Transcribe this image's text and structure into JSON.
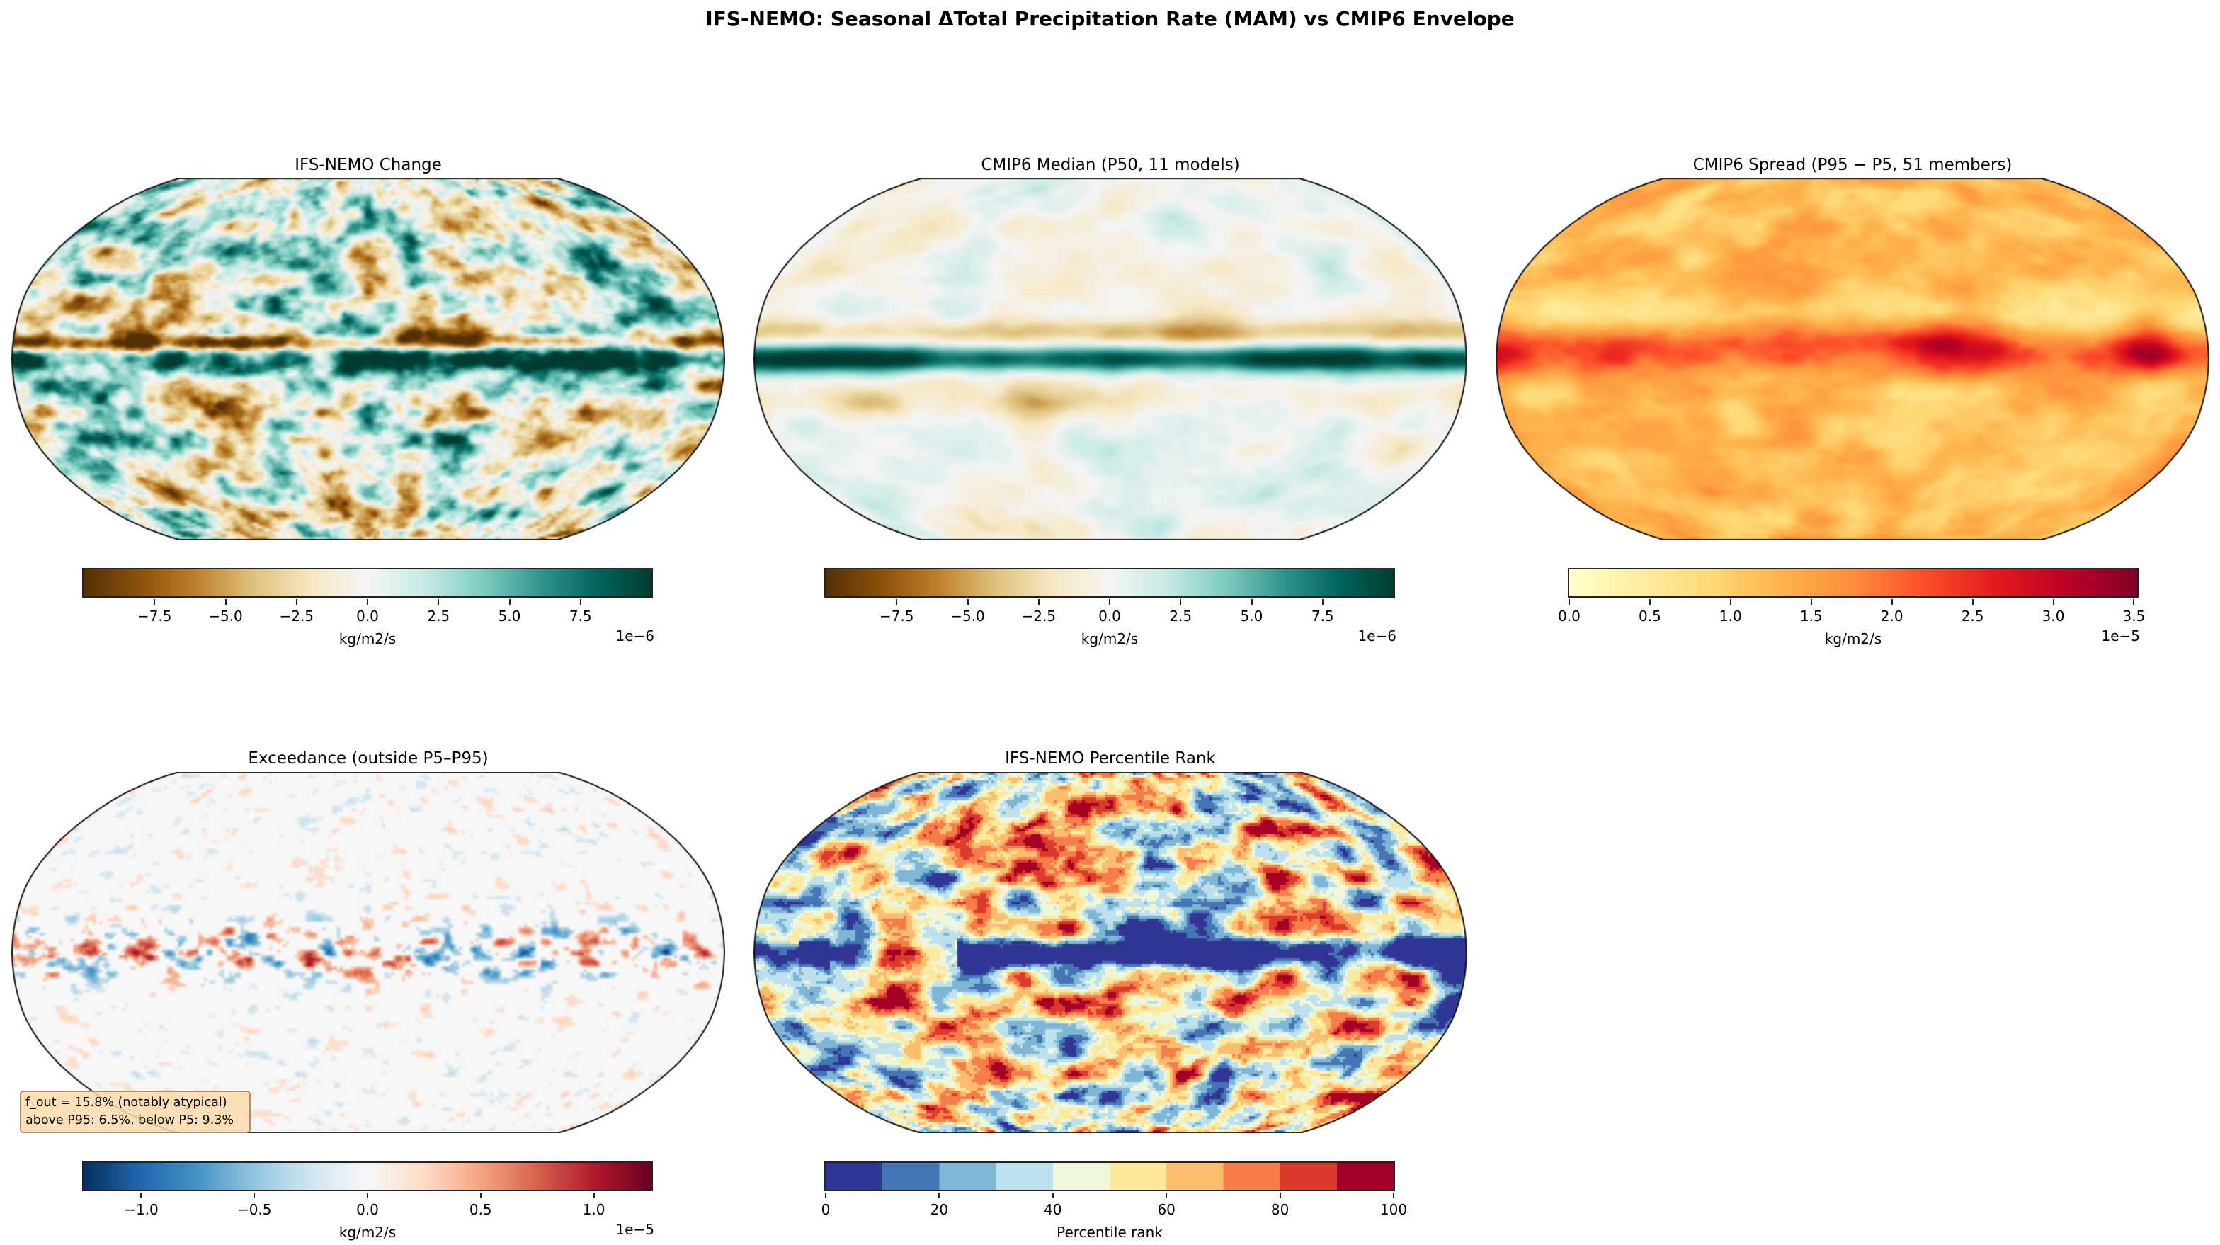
{
  "title": "IFS-NEMO: Seasonal ΔTotal Precipitation Rate (MAM) vs CMIP6 Envelope",
  "chart_data": [
    {
      "type": "heatmap",
      "title": "IFS-NEMO Change",
      "projection": "Robinson",
      "colormap": "BrBG",
      "colorbar": {
        "label": "kg/m2/s",
        "offset": "1e−6",
        "range": [
          -10,
          10
        ],
        "ticks": [
          "−7.5",
          "−5.0",
          "−2.5",
          "0.0",
          "2.5",
          "5.0",
          "7.5"
        ],
        "tick_values": [
          -7.5,
          -5,
          -2.5,
          0,
          2.5,
          5,
          7.5
        ]
      }
    },
    {
      "type": "heatmap",
      "title": "CMIP6 Median (P50, 11 models)",
      "projection": "Robinson",
      "colormap": "BrBG",
      "colorbar": {
        "label": "kg/m2/s",
        "offset": "1e−6",
        "range": [
          -10,
          10
        ],
        "ticks": [
          "−7.5",
          "−5.0",
          "−2.5",
          "0.0",
          "2.5",
          "5.0",
          "7.5"
        ],
        "tick_values": [
          -7.5,
          -5,
          -2.5,
          0,
          2.5,
          5,
          7.5
        ]
      }
    },
    {
      "type": "heatmap",
      "title": "CMIP6 Spread (P95 − P5, 51 members)",
      "projection": "Robinson",
      "colormap": "YlOrRd",
      "colorbar": {
        "label": "kg/m2/s",
        "offset": "1e−5",
        "range": [
          0,
          3.52
        ],
        "ticks": [
          "0.0",
          "0.5",
          "1.0",
          "1.5",
          "2.0",
          "2.5",
          "3.0",
          "3.5"
        ],
        "tick_values": [
          0,
          0.5,
          1,
          1.5,
          2,
          2.5,
          3,
          3.5
        ]
      }
    },
    {
      "type": "heatmap",
      "title": "Exceedance (outside P5–P95)",
      "projection": "Robinson",
      "colormap": "RdBu_r",
      "colorbar": {
        "label": "kg/m2/s",
        "offset": "1e−5",
        "range": [
          -1.255,
          1.255
        ],
        "ticks": [
          "−1.0",
          "−0.5",
          "0.0",
          "0.5",
          "1.0"
        ],
        "tick_values": [
          -1,
          -0.5,
          0,
          0.5,
          1
        ]
      },
      "annotation": [
        "f_out = 15.8% (notably atypical)",
        "above P95: 6.5%, below P5: 9.3%"
      ]
    },
    {
      "type": "heatmap",
      "title": "IFS-NEMO Percentile Rank",
      "projection": "Robinson",
      "colormap": "RdYlBu_r (10 levels)",
      "colorbar": {
        "label": "Percentile rank",
        "offset": "",
        "range": [
          0,
          100
        ],
        "ticks": [
          "0",
          "20",
          "40",
          "60",
          "80",
          "100"
        ],
        "tick_values": [
          0,
          20,
          40,
          60,
          80,
          100
        ]
      }
    }
  ]
}
